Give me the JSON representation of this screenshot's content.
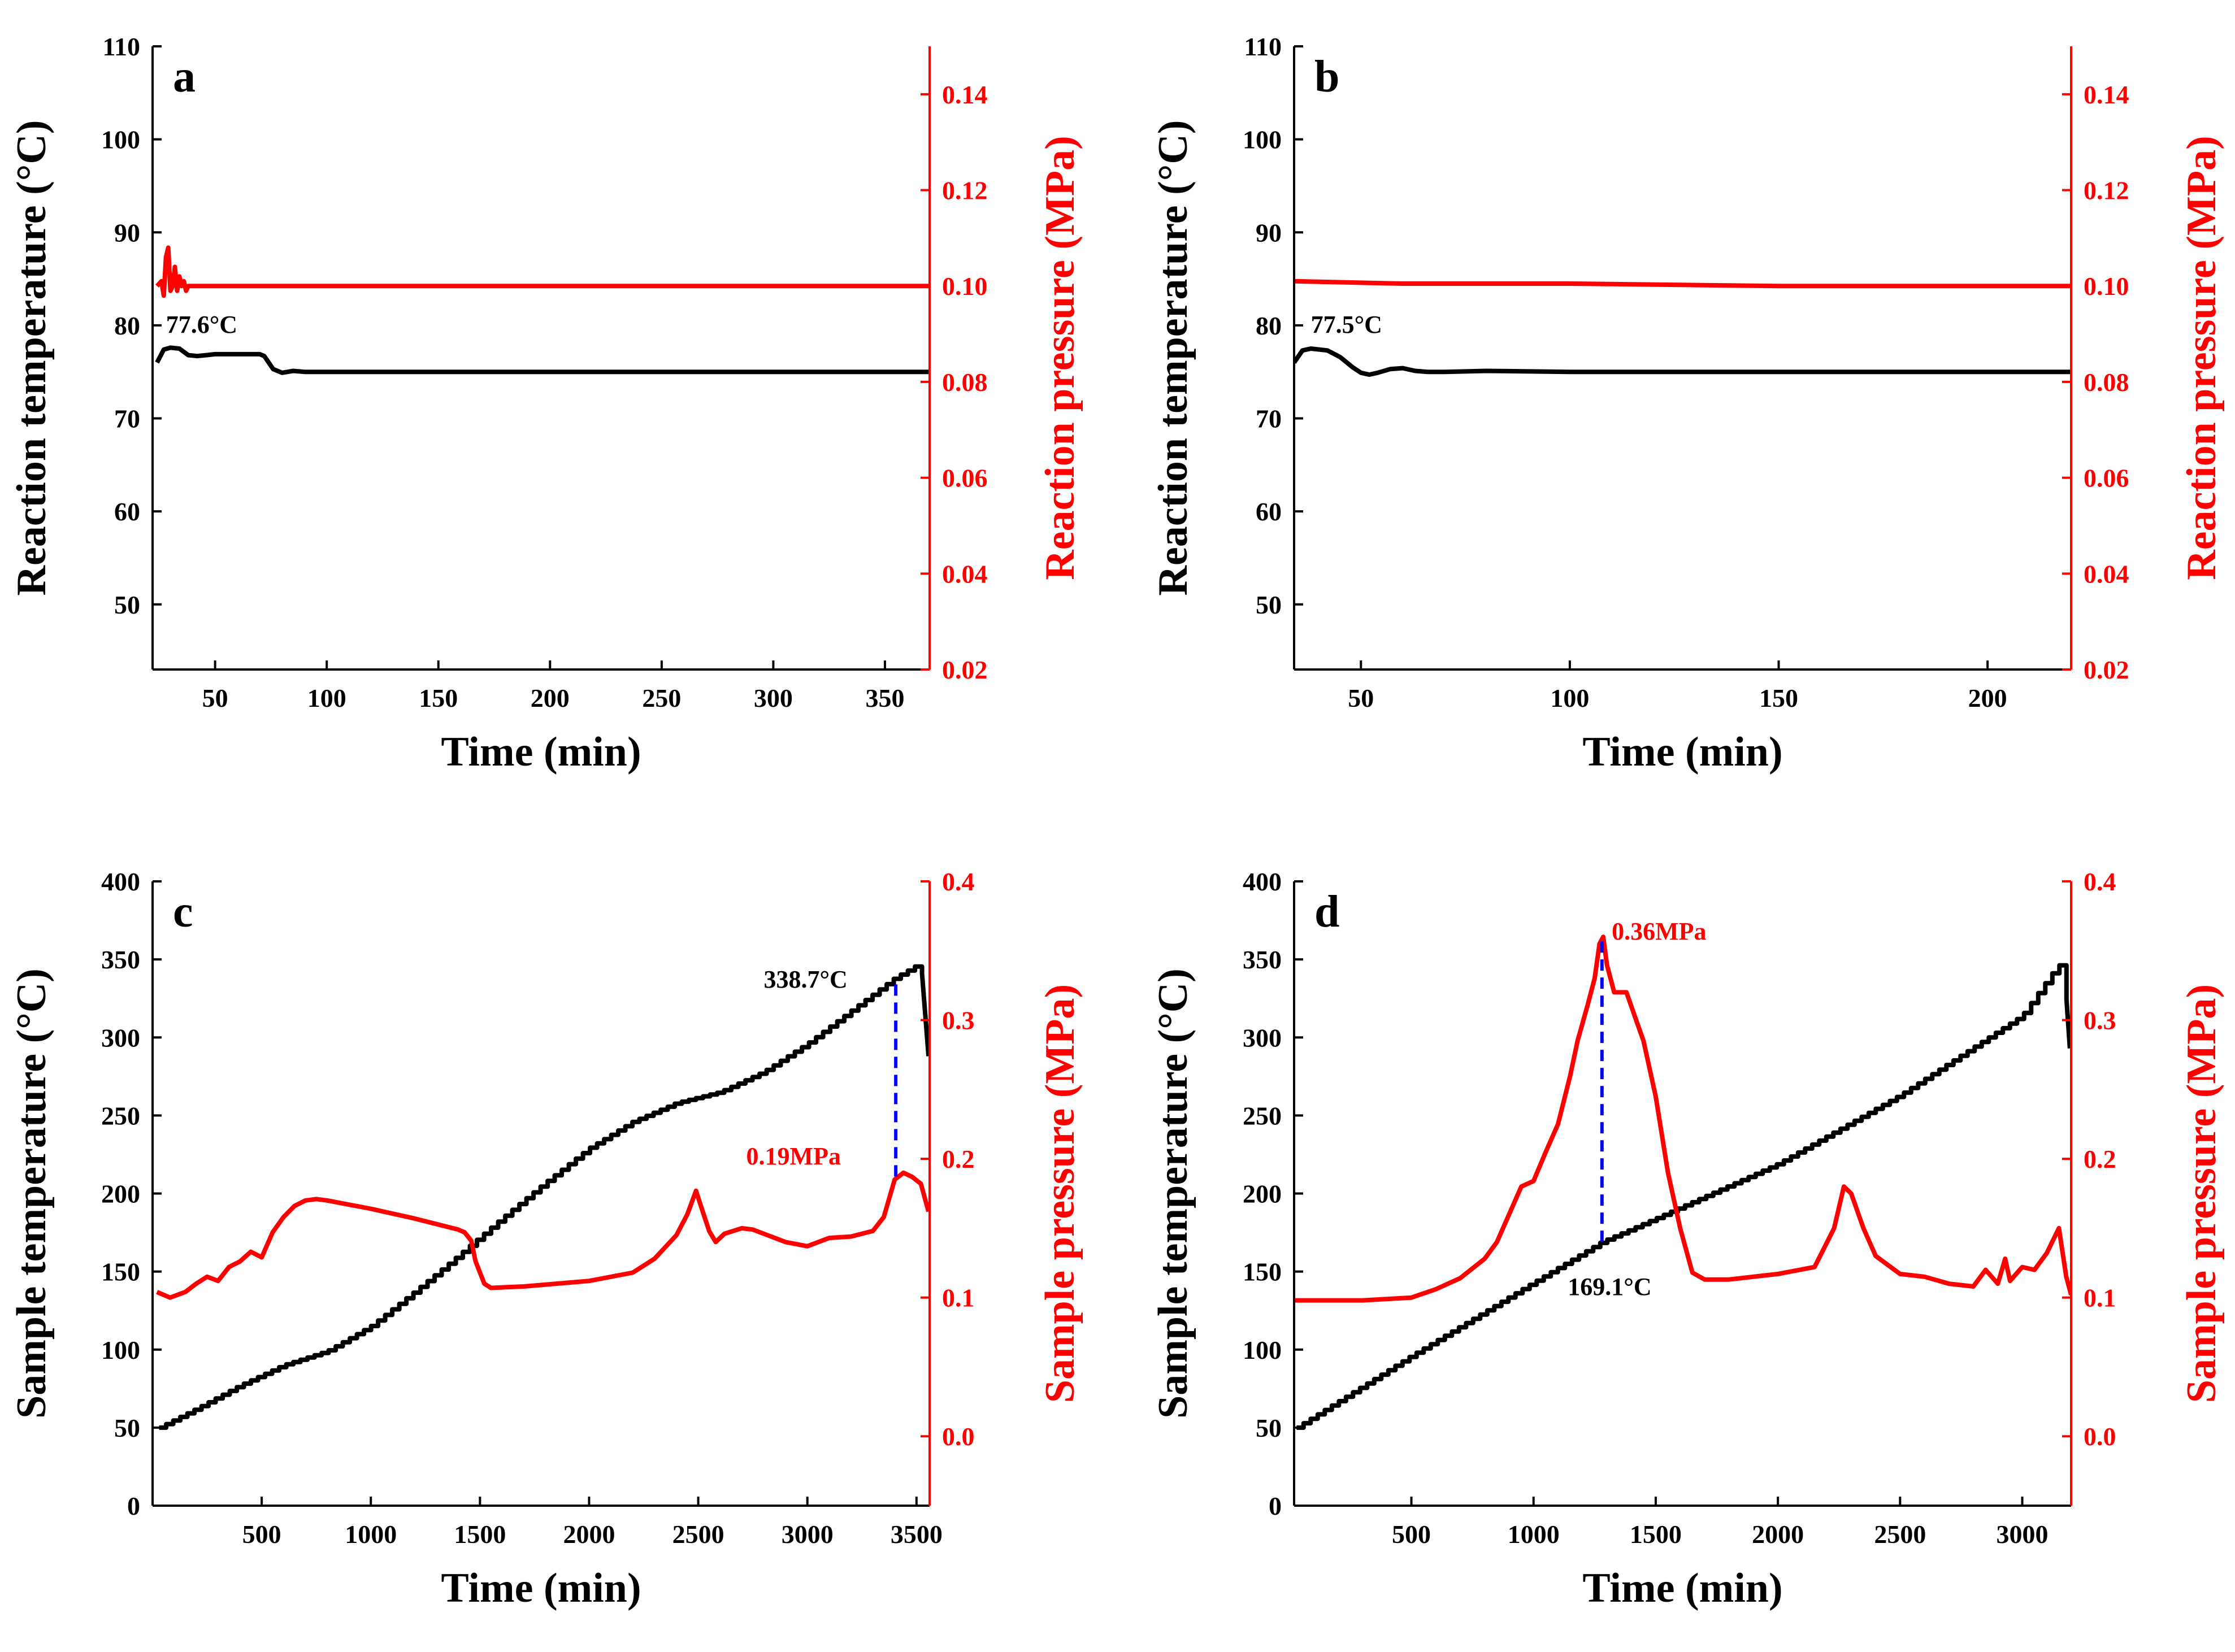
{
  "colors": {
    "temperature": "#000000",
    "pressure": "#ff0000",
    "guide": "#0000ff"
  },
  "chart_data": [
    {
      "panel": "a",
      "type": "line",
      "xlabel": "Time (min)",
      "ylabel_left": "Reaction temperature (°C)",
      "ylabel_right": "Reaction pressure (MPa)",
      "xlim": [
        22,
        370
      ],
      "ylim_left": [
        43,
        110
      ],
      "ylim_right": [
        0.02,
        0.15
      ],
      "xticks": [
        50,
        100,
        150,
        200,
        250,
        300,
        350
      ],
      "yticks_left": [
        50,
        60,
        70,
        80,
        90,
        100,
        110
      ],
      "yticks_right": [
        0.02,
        0.04,
        0.06,
        0.08,
        0.1,
        0.12,
        0.14
      ],
      "right_decimals": 2,
      "series": [
        {
          "name": "Reaction temperature",
          "axis": "left",
          "color": "#000000",
          "x": [
            24,
            27,
            30,
            34,
            38,
            42,
            46,
            50,
            60,
            70,
            72,
            76,
            80,
            85,
            90,
            100,
            120,
            150,
            200,
            250,
            300,
            370
          ],
          "y": [
            76.0,
            77.4,
            77.6,
            77.5,
            76.8,
            76.7,
            76.8,
            76.9,
            76.9,
            76.9,
            76.7,
            75.3,
            74.9,
            75.1,
            75.0,
            75.0,
            75.0,
            75.0,
            75.0,
            75.0,
            75.0,
            75.0
          ]
        },
        {
          "name": "Reaction pressure",
          "axis": "right",
          "color": "#ff0000",
          "x": [
            24,
            26,
            27,
            28,
            29,
            30,
            31,
            32,
            33,
            34,
            35,
            36,
            37,
            38,
            40,
            43,
            50,
            100,
            200,
            300,
            370
          ],
          "y": [
            0.1,
            0.101,
            0.098,
            0.106,
            0.108,
            0.099,
            0.1,
            0.104,
            0.099,
            0.102,
            0.1,
            0.101,
            0.099,
            0.1,
            0.1,
            0.1,
            0.1,
            0.1,
            0.1,
            0.1,
            0.1
          ]
        }
      ],
      "annotations": [
        {
          "text": "77.6°C",
          "x": 28,
          "y": 79.2,
          "axis": "left",
          "color": "#000000"
        }
      ],
      "guides": []
    },
    {
      "panel": "b",
      "type": "line",
      "xlabel": "Time (min)",
      "ylabel_left": "Reaction temperature (°C)",
      "ylabel_right": "Reaction pressure (MPa)",
      "xlim": [
        34,
        220
      ],
      "ylim_left": [
        43,
        110
      ],
      "ylim_right": [
        0.02,
        0.15
      ],
      "xticks": [
        50,
        100,
        150,
        200
      ],
      "yticks_left": [
        50,
        60,
        70,
        80,
        90,
        100,
        110
      ],
      "yticks_right": [
        0.02,
        0.04,
        0.06,
        0.08,
        0.1,
        0.12,
        0.14
      ],
      "right_decimals": 2,
      "series": [
        {
          "name": "Reaction temperature",
          "axis": "left",
          "color": "#000000",
          "x": [
            34,
            36,
            38,
            42,
            45,
            48,
            50,
            52,
            54,
            57,
            60,
            63,
            66,
            70,
            80,
            100,
            150,
            200,
            220
          ],
          "y": [
            76.0,
            77.3,
            77.5,
            77.3,
            76.6,
            75.5,
            74.9,
            74.7,
            74.9,
            75.3,
            75.4,
            75.1,
            75.0,
            75.0,
            75.1,
            75.0,
            75.0,
            75.0,
            75.0
          ]
        },
        {
          "name": "Reaction pressure",
          "axis": "right",
          "color": "#ff0000",
          "x": [
            34,
            60,
            100,
            150,
            200,
            220
          ],
          "y": [
            0.101,
            0.1005,
            0.1005,
            0.1,
            0.1,
            0.1
          ]
        }
      ],
      "annotations": [
        {
          "text": "77.5°C",
          "x": 38,
          "y": 79.2,
          "axis": "left",
          "color": "#000000"
        }
      ],
      "guides": []
    },
    {
      "panel": "c",
      "type": "line",
      "xlabel": "Time (min)",
      "ylabel_left": "Sample temperature (°C)",
      "ylabel_right": "Sample pressure (MPa)",
      "xlim": [
        0,
        3560
      ],
      "ylim_left": [
        0,
        400
      ],
      "ylim_right": [
        -0.05,
        0.4
      ],
      "xticks": [
        500,
        1000,
        1500,
        2000,
        2500,
        3000,
        3500
      ],
      "yticks_left": [
        0,
        50,
        100,
        150,
        200,
        250,
        300,
        350,
        400
      ],
      "yticks_right": [
        0.0,
        0.1,
        0.2,
        0.3,
        0.4
      ],
      "right_decimals": 1,
      "series": [
        {
          "name": "Sample temperature",
          "axis": "left",
          "color": "#000000",
          "staircase": true,
          "x": [
            30,
            200,
            400,
            600,
            800,
            1000,
            1200,
            1400,
            1600,
            1800,
            2000,
            2200,
            2400,
            2600,
            2800,
            3000,
            3200,
            3400,
            3500,
            3530,
            3555
          ],
          "y": [
            50,
            62,
            77,
            90,
            99,
            115,
            137,
            160,
            184,
            207,
            229,
            246,
            258,
            265,
            278,
            296,
            317,
            338,
            346,
            340,
            288
          ]
        },
        {
          "name": "Sample pressure",
          "axis": "right",
          "color": "#ff0000",
          "x": [
            20,
            80,
            150,
            200,
            250,
            300,
            350,
            400,
            450,
            500,
            550,
            600,
            650,
            700,
            750,
            800,
            1000,
            1200,
            1400,
            1430,
            1460,
            1480,
            1520,
            1550,
            1700,
            2000,
            2200,
            2300,
            2400,
            2450,
            2490,
            2510,
            2550,
            2580,
            2620,
            2700,
            2750,
            2800,
            2900,
            3000,
            3100,
            3200,
            3300,
            3350,
            3400,
            3440,
            3480,
            3520,
            3555
          ],
          "y": [
            0.104,
            0.1,
            0.104,
            0.11,
            0.115,
            0.112,
            0.122,
            0.126,
            0.133,
            0.129,
            0.147,
            0.158,
            0.166,
            0.17,
            0.171,
            0.17,
            0.164,
            0.157,
            0.149,
            0.147,
            0.141,
            0.126,
            0.11,
            0.107,
            0.108,
            0.112,
            0.118,
            0.128,
            0.145,
            0.16,
            0.177,
            0.167,
            0.148,
            0.14,
            0.146,
            0.15,
            0.149,
            0.146,
            0.14,
            0.137,
            0.143,
            0.144,
            0.148,
            0.158,
            0.185,
            0.19,
            0.187,
            0.182,
            0.162
          ]
        }
      ],
      "annotations": [
        {
          "text": "338.7°C",
          "x": 2800,
          "y": 332,
          "axis": "left",
          "color": "#000000"
        },
        {
          "text": "0.19MPa",
          "x": 2720,
          "y": 0.196,
          "axis": "right",
          "color": "#ff0000"
        }
      ],
      "guides": [
        {
          "x": 3405,
          "y_from_left": 334,
          "y_to_right": 0.187
        }
      ]
    },
    {
      "panel": "d",
      "type": "line",
      "xlabel": "Time (min)",
      "ylabel_left": "Sample temperature (°C)",
      "ylabel_right": "Sample pressure (MPa)",
      "xlim": [
        20,
        3200
      ],
      "ylim_left": [
        0,
        400
      ],
      "ylim_right": [
        -0.05,
        0.4
      ],
      "xticks": [
        500,
        1000,
        1500,
        2000,
        2500,
        3000
      ],
      "yticks_left": [
        0,
        50,
        100,
        150,
        200,
        250,
        300,
        350,
        400
      ],
      "yticks_right": [
        0.0,
        0.1,
        0.2,
        0.3,
        0.4
      ],
      "right_decimals": 1,
      "series": [
        {
          "name": "Sample temperature",
          "axis": "left",
          "color": "#000000",
          "staircase": true,
          "x": [
            30,
            500,
            1000,
            1280,
            1500,
            2000,
            2500,
            3000,
            3150,
            3175,
            3195
          ],
          "y": [
            50,
            96,
            143,
            169,
            184,
            219,
            263,
            314,
            347,
            338,
            293
          ]
        },
        {
          "name": "Sample pressure",
          "axis": "right",
          "color": "#ff0000",
          "x": [
            20,
            300,
            500,
            600,
            700,
            800,
            850,
            900,
            950,
            1000,
            1050,
            1100,
            1150,
            1180,
            1220,
            1250,
            1270,
            1285,
            1300,
            1330,
            1380,
            1420,
            1450,
            1500,
            1550,
            1600,
            1650,
            1700,
            1800,
            2000,
            2150,
            2230,
            2270,
            2300,
            2350,
            2400,
            2500,
            2600,
            2700,
            2800,
            2850,
            2900,
            2930,
            2950,
            3000,
            3050,
            3100,
            3150,
            3180,
            3200
          ],
          "y": [
            0.098,
            0.098,
            0.1,
            0.106,
            0.114,
            0.128,
            0.14,
            0.16,
            0.18,
            0.184,
            0.205,
            0.225,
            0.26,
            0.285,
            0.31,
            0.33,
            0.355,
            0.36,
            0.34,
            0.32,
            0.32,
            0.3,
            0.285,
            0.245,
            0.19,
            0.15,
            0.118,
            0.113,
            0.113,
            0.117,
            0.122,
            0.15,
            0.18,
            0.175,
            0.15,
            0.13,
            0.117,
            0.115,
            0.11,
            0.108,
            0.12,
            0.11,
            0.128,
            0.112,
            0.122,
            0.12,
            0.132,
            0.15,
            0.115,
            0.102
          ]
        }
      ],
      "annotations": [
        {
          "text": "0.36MPa",
          "x": 1320,
          "y": 0.358,
          "axis": "right",
          "color": "#ff0000"
        },
        {
          "text": "169.1°C",
          "x": 1140,
          "y": 135,
          "axis": "left",
          "color": "#000000"
        }
      ],
      "guides": [
        {
          "x": 1280,
          "y_from_left": 169,
          "y_to_right": 0.358
        }
      ]
    }
  ]
}
